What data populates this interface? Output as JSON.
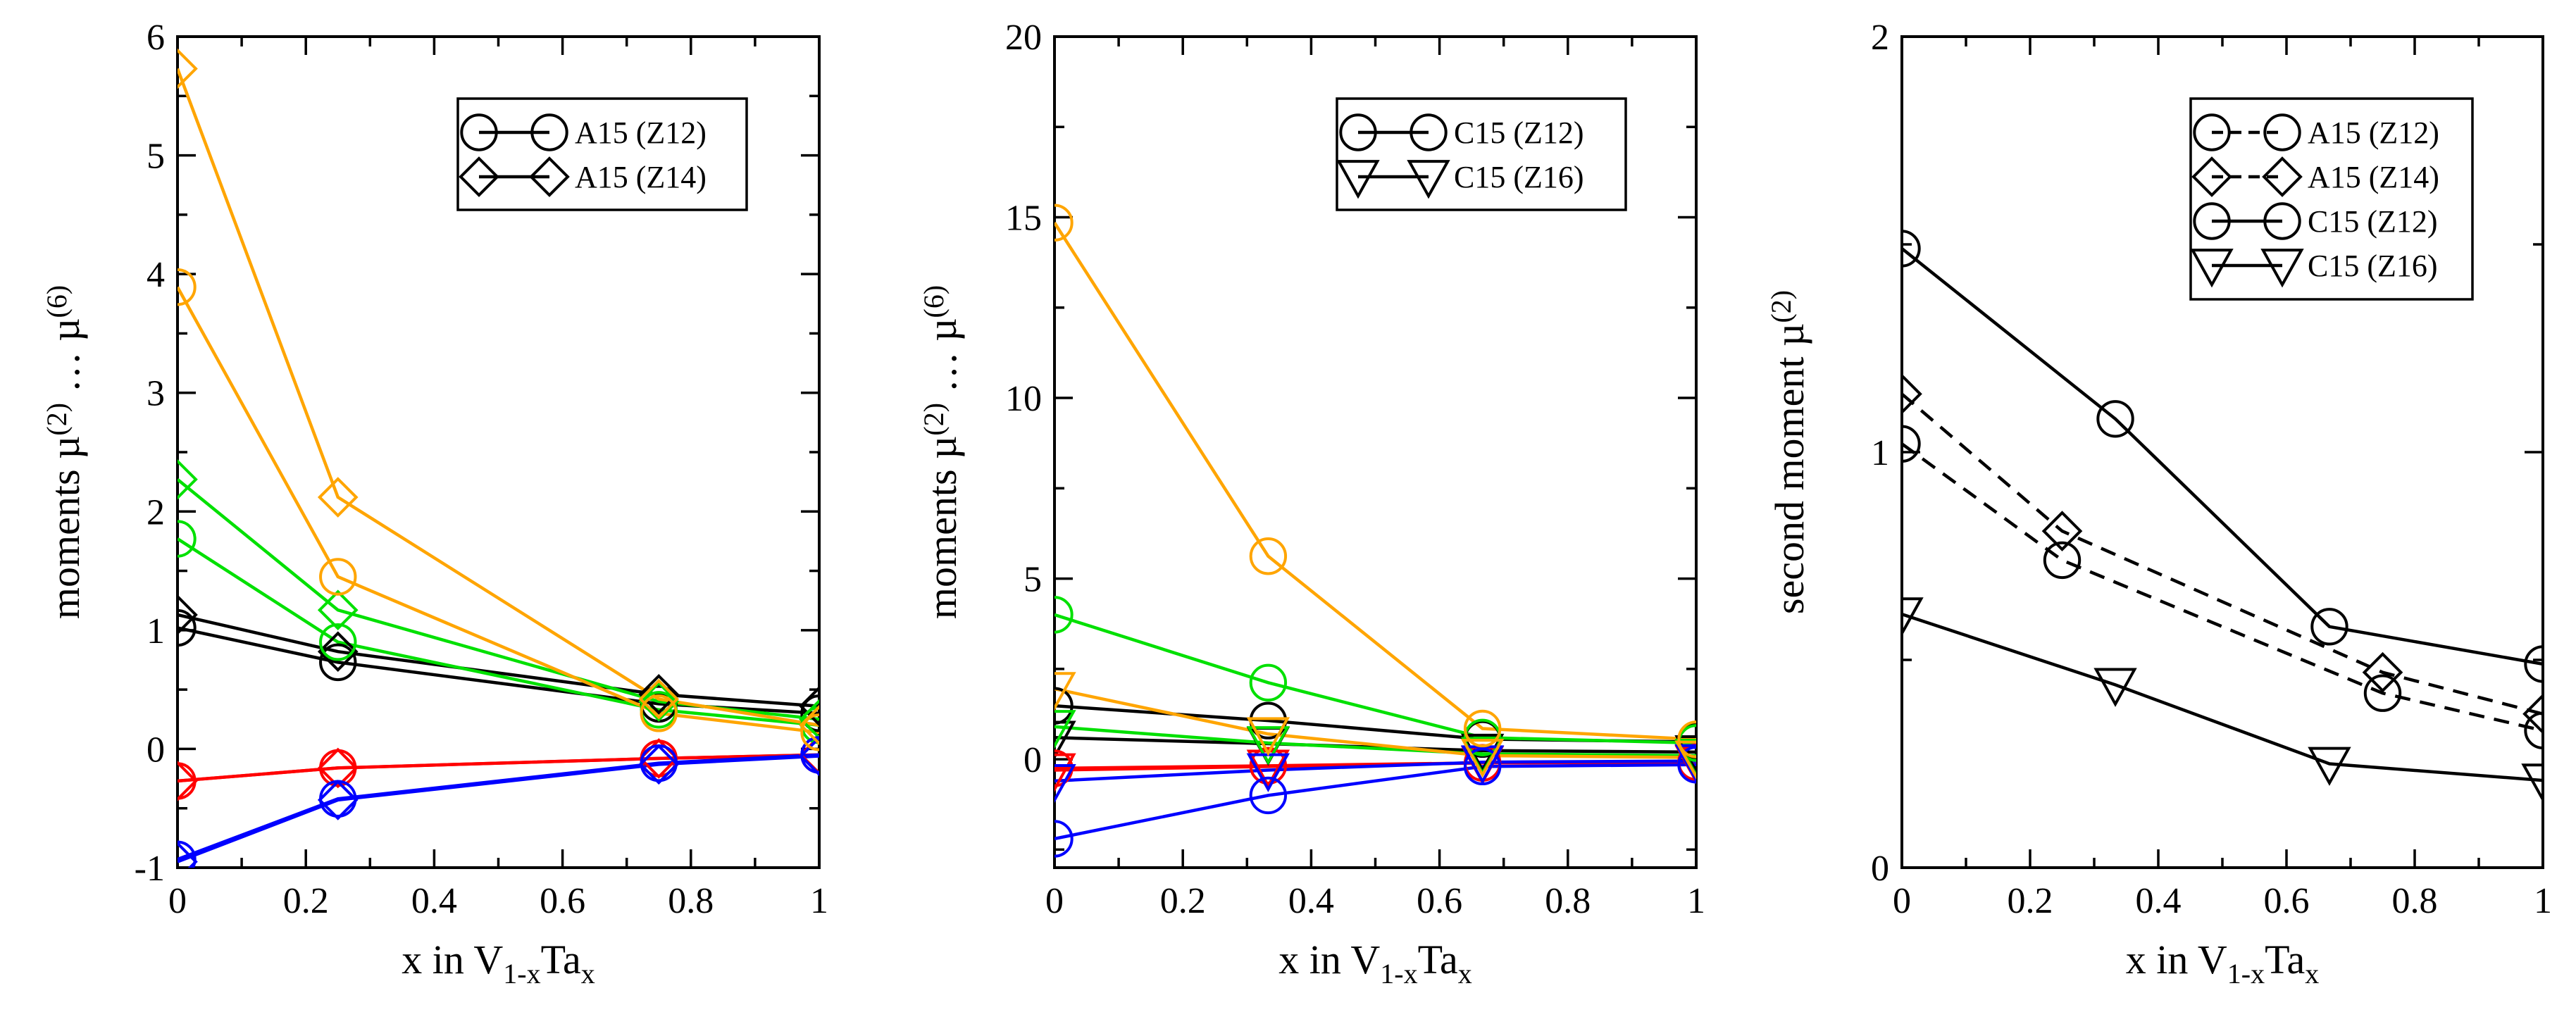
{
  "chart_data": [
    {
      "type": "line",
      "ylabel": "moments µ(2) … µ(6)",
      "xlabel": "x in V1-xTax",
      "xlim": [
        0,
        1
      ],
      "ylim": [
        -1,
        6
      ],
      "xticks": [
        "0",
        "0.2",
        "0.4",
        "0.6",
        "0.8",
        "1"
      ],
      "yticks": [
        "-1",
        "0",
        "1",
        "2",
        "3",
        "4",
        "5",
        "6"
      ],
      "legend": [
        {
          "label": "A15 (Z12)",
          "marker": "circle",
          "dash": "solid"
        },
        {
          "label": "A15 (Z14)",
          "marker": "diamond",
          "dash": "solid"
        }
      ],
      "series": [
        {
          "name": "A15 (Z12) µ(2)",
          "color": "#000000",
          "marker": "circle",
          "x": [
            0,
            0.25,
            0.75,
            1
          ],
          "values": [
            1.02,
            0.73,
            0.38,
            0.3
          ]
        },
        {
          "name": "A15 (Z14) µ(2)",
          "color": "#000000",
          "marker": "diamond",
          "x": [
            0,
            0.25,
            0.75,
            1
          ],
          "values": [
            1.13,
            0.82,
            0.46,
            0.36
          ]
        },
        {
          "name": "A15 (Z12) µ(3)",
          "color": "#ff0000",
          "marker": "circle",
          "x": [
            0,
            0.25,
            0.75,
            1
          ],
          "values": [
            -0.27,
            -0.16,
            -0.08,
            -0.05
          ]
        },
        {
          "name": "A15 (Z14) µ(3)",
          "color": "#ff0000",
          "marker": "diamond",
          "x": [
            0,
            0.25,
            0.75,
            1
          ],
          "values": [
            -0.27,
            -0.16,
            -0.08,
            -0.05
          ]
        },
        {
          "name": "A15 (Z12) µ(4)",
          "color": "#00e000",
          "marker": "circle",
          "x": [
            0,
            0.25,
            0.75,
            1
          ],
          "values": [
            1.77,
            0.9,
            0.33,
            0.2
          ]
        },
        {
          "name": "A15 (Z14) µ(4)",
          "color": "#00e000",
          "marker": "diamond",
          "x": [
            0,
            0.25,
            0.75,
            1
          ],
          "values": [
            2.27,
            1.17,
            0.4,
            0.25
          ]
        },
        {
          "name": "A15 (Z12) µ(5)",
          "color": "#0000ff",
          "marker": "circle",
          "x": [
            0,
            0.25,
            0.75,
            1
          ],
          "values": [
            -0.93,
            -0.42,
            -0.12,
            -0.05
          ]
        },
        {
          "name": "A15 (Z14) µ(5)",
          "color": "#0000ff",
          "marker": "diamond",
          "x": [
            0,
            0.25,
            0.75,
            1
          ],
          "values": [
            -0.95,
            -0.43,
            -0.13,
            -0.06
          ]
        },
        {
          "name": "A15 (Z12) µ(6)",
          "color": "#ffa500",
          "marker": "circle",
          "x": [
            0,
            0.25,
            0.75,
            1
          ],
          "values": [
            3.89,
            1.45,
            0.3,
            0.14
          ]
        },
        {
          "name": "A15 (Z14) µ(6)",
          "color": "#ffa500",
          "marker": "diamond",
          "x": [
            0,
            0.25,
            0.75,
            1
          ],
          "values": [
            5.73,
            2.12,
            0.42,
            0.2
          ]
        }
      ]
    },
    {
      "type": "line",
      "ylabel": "moments µ(2) … µ(6)",
      "xlabel": "x in V1-xTax",
      "xlim": [
        0,
        1
      ],
      "ylim": [
        -3,
        20
      ],
      "xticks": [
        "0",
        "0.2",
        "0.4",
        "0.6",
        "0.8",
        "1"
      ],
      "yticks": [
        "0",
        "5",
        "10",
        "15",
        "20"
      ],
      "legend": [
        {
          "label": "C15 (Z12)",
          "marker": "circle",
          "dash": "solid"
        },
        {
          "label": "C15 (Z16)",
          "marker": "triangle-down",
          "dash": "solid"
        }
      ],
      "series": [
        {
          "name": "C15 (Z12) µ(2)",
          "color": "#000000",
          "marker": "circle",
          "x": [
            0,
            0.333,
            0.667,
            1
          ],
          "values": [
            1.48,
            1.07,
            0.56,
            0.48
          ]
        },
        {
          "name": "C15 (Z16) µ(2)",
          "color": "#000000",
          "marker": "triangle-down",
          "x": [
            0,
            0.333,
            0.667,
            1
          ],
          "values": [
            0.6,
            0.43,
            0.24,
            0.2
          ]
        },
        {
          "name": "C15 (Z12) µ(3)",
          "color": "#ff0000",
          "marker": "circle",
          "x": [
            0,
            0.333,
            0.667,
            1
          ],
          "values": [
            -0.25,
            -0.18,
            -0.1,
            -0.08
          ]
        },
        {
          "name": "C15 (Z16) µ(3)",
          "color": "#ff0000",
          "marker": "triangle-down",
          "x": [
            0,
            0.333,
            0.667,
            1
          ],
          "values": [
            -0.3,
            -0.2,
            -0.1,
            -0.08
          ]
        },
        {
          "name": "C15 (Z12) µ(4)",
          "color": "#00e000",
          "marker": "circle",
          "x": [
            0,
            0.333,
            0.667,
            1
          ],
          "values": [
            4.0,
            2.12,
            0.6,
            0.45
          ]
        },
        {
          "name": "C15 (Z16) µ(4)",
          "color": "#00e000",
          "marker": "triangle-down",
          "x": [
            0,
            0.333,
            0.667,
            1
          ],
          "values": [
            0.9,
            0.45,
            0.15,
            0.1
          ]
        },
        {
          "name": "C15 (Z12) µ(5)",
          "color": "#0000ff",
          "marker": "circle",
          "x": [
            0,
            0.333,
            0.667,
            1
          ],
          "values": [
            -2.2,
            -1.0,
            -0.2,
            -0.15
          ]
        },
        {
          "name": "C15 (Z16) µ(5)",
          "color": "#0000ff",
          "marker": "triangle-down",
          "x": [
            0,
            0.333,
            0.667,
            1
          ],
          "values": [
            -0.6,
            -0.3,
            -0.08,
            -0.05
          ]
        },
        {
          "name": "C15 (Z12) µ(6)",
          "color": "#ffa500",
          "marker": "circle",
          "x": [
            0,
            0.333,
            0.667,
            1
          ],
          "values": [
            14.85,
            5.62,
            0.85,
            0.55
          ]
        },
        {
          "name": "C15 (Z16) µ(6)",
          "color": "#ffa500",
          "marker": "triangle-down",
          "x": [
            0,
            0.333,
            0.667,
            1
          ],
          "values": [
            1.95,
            0.7,
            0.1,
            0.05
          ]
        }
      ]
    },
    {
      "type": "line",
      "ylabel": "second moment µ(2)",
      "xlabel": "x in V1-xTax",
      "xlim": [
        0,
        1
      ],
      "ylim": [
        0,
        2
      ],
      "xticks": [
        "0",
        "0.2",
        "0.4",
        "0.6",
        "0.8",
        "1"
      ],
      "yticks": [
        "0",
        "1",
        "2"
      ],
      "legend": [
        {
          "label": "A15 (Z12)",
          "marker": "circle",
          "dash": "dashed"
        },
        {
          "label": "A15 (Z14)",
          "marker": "diamond",
          "dash": "dashed"
        },
        {
          "label": "C15 (Z12)",
          "marker": "circle",
          "dash": "solid"
        },
        {
          "label": "C15 (Z16)",
          "marker": "triangle-down",
          "dash": "solid"
        }
      ],
      "series": [
        {
          "name": "A15 (Z12)",
          "color": "#000000",
          "marker": "circle",
          "dash": "dashed",
          "x": [
            0,
            0.25,
            0.75,
            1
          ],
          "values": [
            1.02,
            0.74,
            0.42,
            0.33
          ]
        },
        {
          "name": "A15 (Z14)",
          "color": "#000000",
          "marker": "diamond",
          "dash": "dashed",
          "x": [
            0,
            0.25,
            0.75,
            1
          ],
          "values": [
            1.14,
            0.81,
            0.47,
            0.37
          ]
        },
        {
          "name": "C15 (Z12)",
          "color": "#000000",
          "marker": "circle",
          "dash": "solid",
          "x": [
            0,
            0.333,
            0.667,
            1
          ],
          "values": [
            1.49,
            1.08,
            0.58,
            0.49
          ]
        },
        {
          "name": "C15 (Z16)",
          "color": "#000000",
          "marker": "triangle-down",
          "dash": "solid",
          "x": [
            0,
            0.333,
            0.667,
            1
          ],
          "values": [
            0.61,
            0.44,
            0.25,
            0.21
          ]
        }
      ]
    }
  ]
}
